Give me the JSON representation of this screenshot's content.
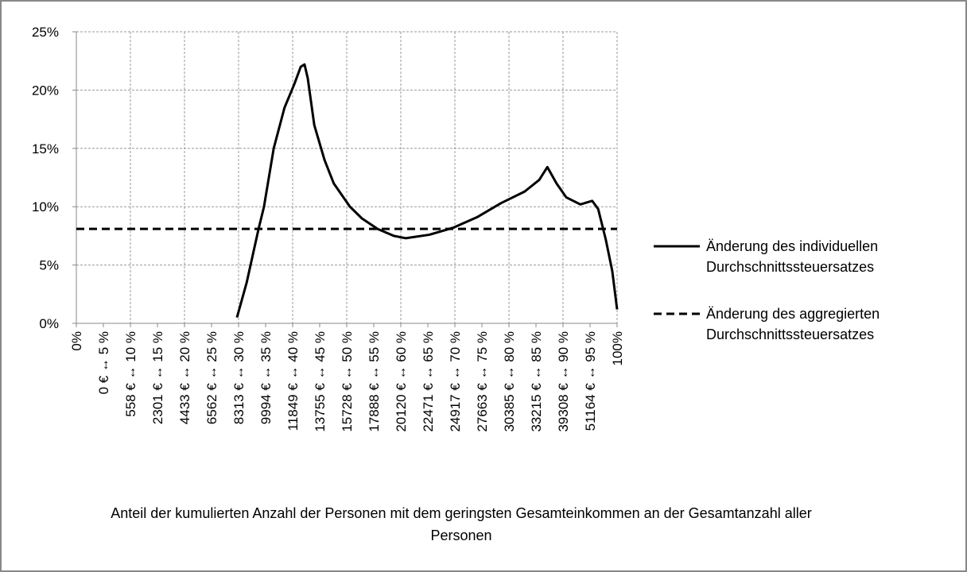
{
  "chart_data": {
    "type": "line",
    "xlabel": "Anteil der  kumulierten Anzahl der Personen mit dem geringsten Gesamteinkommen an der Gesamtanzahl aller Personen",
    "xlim": [
      0,
      100
    ],
    "ylim": [
      0,
      25
    ],
    "grid": true,
    "legend": "right",
    "yticks": [
      {
        "value": 0,
        "label": "0%"
      },
      {
        "value": 5,
        "label": "5%"
      },
      {
        "value": 10,
        "label": "10%"
      },
      {
        "value": 15,
        "label": "15%"
      },
      {
        "value": 20,
        "label": "20%"
      },
      {
        "value": 25,
        "label": "25%"
      }
    ],
    "xticks": [
      {
        "value": 0,
        "label": "0%"
      },
      {
        "value": 5,
        "label": "0 € ↔ 5 %"
      },
      {
        "value": 10,
        "label": "558 € ↔ 10 %"
      },
      {
        "value": 15,
        "label": "2301 € ↔ 15 %"
      },
      {
        "value": 20,
        "label": "4433 € ↔ 20 %"
      },
      {
        "value": 25,
        "label": "6562 € ↔ 25 %"
      },
      {
        "value": 30,
        "label": "8313 € ↔ 30 %"
      },
      {
        "value": 35,
        "label": "9994 € ↔ 35 %"
      },
      {
        "value": 40,
        "label": "11849 € ↔ 40 %"
      },
      {
        "value": 45,
        "label": "13755 € ↔ 45 %"
      },
      {
        "value": 50,
        "label": "15728 € ↔ 50 %"
      },
      {
        "value": 55,
        "label": "17888 € ↔ 55 %"
      },
      {
        "value": 60,
        "label": "20120 € ↔ 60 %"
      },
      {
        "value": 65,
        "label": "22471 € ↔ 65 %"
      },
      {
        "value": 70,
        "label": "24917 € ↔ 70 %"
      },
      {
        "value": 75,
        "label": "27663 € ↔ 75 %"
      },
      {
        "value": 80,
        "label": "30385 € ↔ 80 %"
      },
      {
        "value": 85,
        "label": "33215 € ↔ 85 %"
      },
      {
        "value": 90,
        "label": "39308 € ↔ 90 %"
      },
      {
        "value": 95,
        "label": "51164 € ↔ 95 %"
      },
      {
        "value": 100,
        "label": "100%"
      }
    ],
    "series": [
      {
        "name": "Änderung des individuellen Durchschnittssteuersatzes",
        "color": "#000000",
        "dash": "solid",
        "x": [
          29.7,
          31.5,
          33.7,
          34.7,
          36.5,
          38.5,
          40.3,
          41.5,
          42.2,
          42.8,
          44.0,
          45.9,
          47.6,
          50.6,
          52.8,
          55.7,
          58.7,
          60.9,
          65.3,
          69.7,
          74.1,
          78.5,
          82.9,
          85.6,
          87.1,
          88.8,
          90.6,
          93.2,
          95.4,
          96.5,
          97.9,
          99.1,
          100
        ],
        "values": [
          0.5,
          3.5,
          8.1,
          10,
          15,
          18.5,
          20.5,
          22,
          22.2,
          21,
          17,
          14,
          12,
          10,
          9,
          8.1,
          7.5,
          7.3,
          7.6,
          8.2,
          9.1,
          10.3,
          11.3,
          12.3,
          13.4,
          12,
          10.8,
          10.2,
          10.5,
          9.8,
          7.2,
          4.5,
          1.2
        ]
      },
      {
        "name": "Änderung des aggregierten Durchschnittssteuersatzes",
        "color": "#000000",
        "dash": "dashed",
        "x": [
          0,
          100
        ],
        "values": [
          8.1,
          8.1
        ]
      }
    ]
  }
}
